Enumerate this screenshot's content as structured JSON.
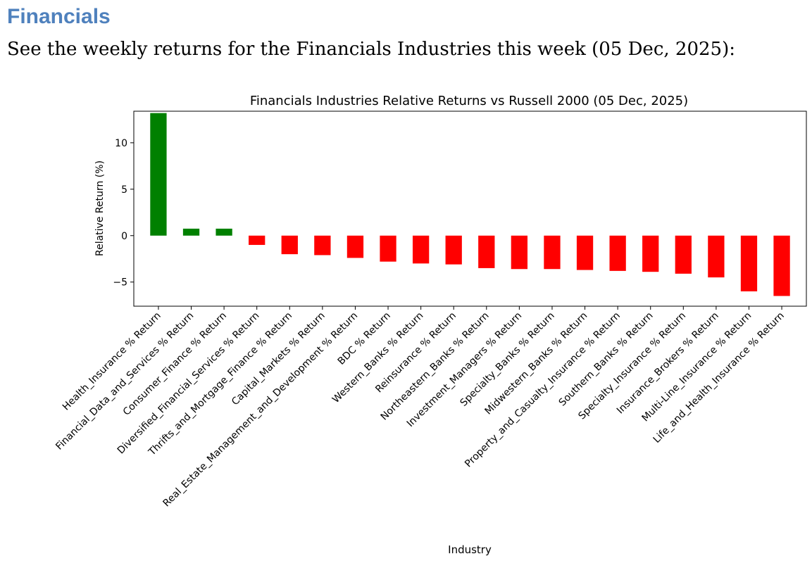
{
  "heading": "Financials",
  "intro": "See the weekly returns for the Financials Industries this week (05 Dec, 2025):",
  "colors": {
    "positive": "#008000",
    "negative": "#ff0000",
    "heading": "#4f81bd"
  },
  "chart_data": {
    "type": "bar",
    "title": "Financials Industries Relative Returns vs Russell 2000 (05 Dec, 2025)",
    "xlabel": "Industry",
    "ylabel": "Relative Return (%)",
    "ylim": [
      -7.6,
      13.4
    ],
    "yticks": [
      -5,
      0,
      5,
      10
    ],
    "grid": false,
    "legend": "none",
    "categories": [
      "Health_Insurance % Return",
      "Financial_Data_and_Services % Return",
      "Consumer_Finance % Return",
      "Diversified_Financial_Services % Return",
      "Thrifts_and_Mortgage_Finance % Return",
      "Capital_Markets % Return",
      "Real_Estate_Management_and_Development % Return",
      "BDC % Return",
      "Western_Banks % Return",
      "Reinsurance % Return",
      "Northeastern_Banks % Return",
      "Investment_Managers % Return",
      "Specialty_Banks % Return",
      "Midwestern_Banks % Return",
      "Property_and_Casualty_Insurance % Return",
      "Southern_Banks % Return",
      "Specialty_Insurance % Return",
      "Insurance_Brokers % Return",
      "Multi-Line_Insurance % Return",
      "Life_and_Health_Insurance % Return"
    ],
    "values": [
      13.2,
      0.75,
      0.75,
      -1.0,
      -2.0,
      -2.1,
      -2.4,
      -2.8,
      -3.0,
      -3.1,
      -3.5,
      -3.6,
      -3.6,
      -3.7,
      -3.8,
      -3.9,
      -4.1,
      -4.5,
      -6.0,
      -6.5
    ]
  }
}
